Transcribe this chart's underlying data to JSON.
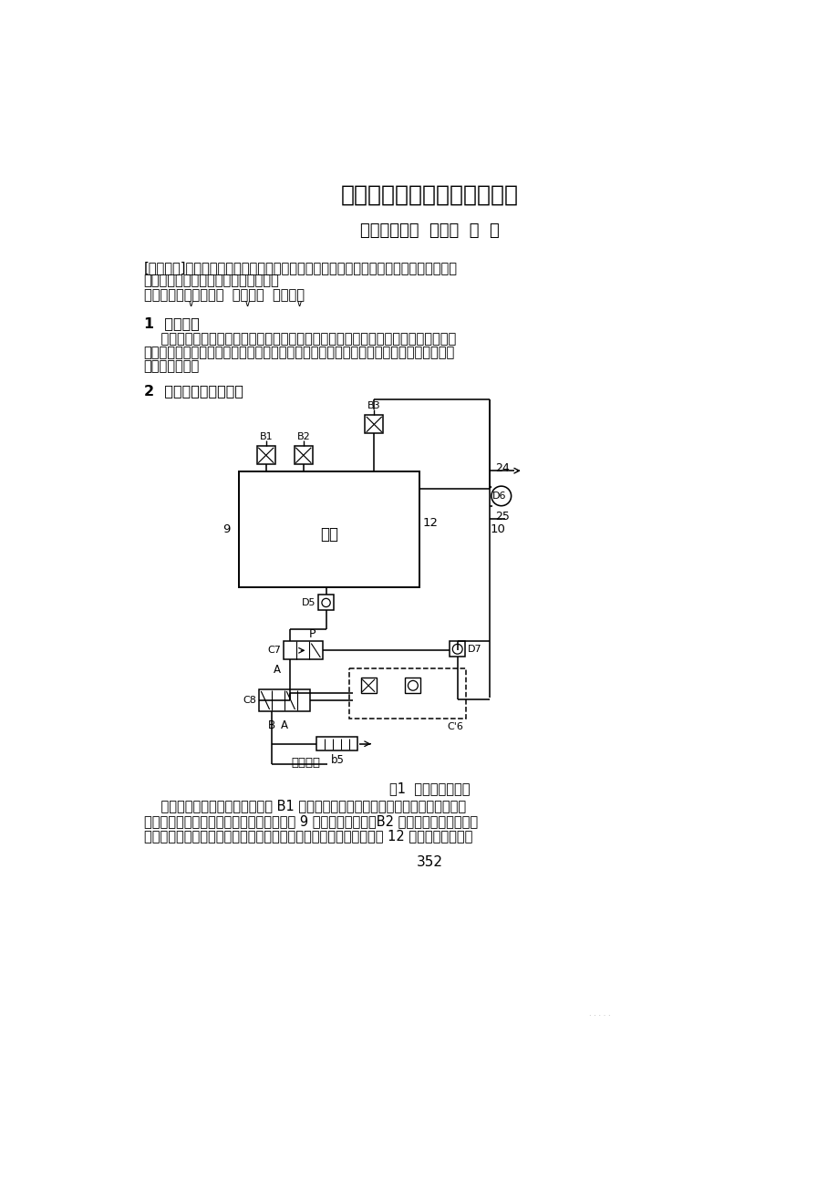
{
  "title": "主机遥控系统起动故障的分析",
  "authors": "大连海事大学  王冬捷  陈  健",
  "abstract_line1": "[内容摘要]：本文对某轮气动主机遥控系统的起动回路进行了分析，并在此基础上具体分",
  "abstract_line2": "析了起动过程中出现的一个故障现象。",
  "keywords_line": "关键词：主机遥控系统  起动回路  故障分析",
  "section1_title": "1  故障现象",
  "section1_lines": [
    "    该轮在起动过程中出现的故障现象是这样的：在正车起动时，起动过程正常，当从正",
    "车向倒车换向时，换向过程也正常，但在换向完成以后进行倒车起动时，无法实现正常的",
    "倒车起动过程。"
  ],
  "section2_title": "2  起动回路的原理分析",
  "fig_caption": "图1  起动回路原理图",
  "body_lines": [
    "    参看起动回路的原理图，在图中 B1 为正车控制阀，在正车换向及正车起动时由操纵",
    "手柄将控制端压下，使其工作在上位，这样 9 号管路有气信号。B2 为倒车控制阀，在倒车",
    "换向及倒车起动时由操纵手柄将控制端压下，使其工作在上位，这样 12 号管路有气信号。"
  ],
  "page_number": "352",
  "bg_color": "#ffffff"
}
